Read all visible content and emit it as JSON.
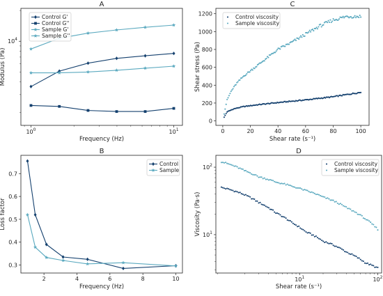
{
  "colors": {
    "dark": "#14406e",
    "light": "#5aa9bf"
  },
  "chart_data": [
    {
      "id": "A",
      "type": "line",
      "title": "A",
      "xlabel": "Frequency (Hz)",
      "ylabel": "Modulus (Pa)",
      "xscale": "log",
      "yscale": "log",
      "xlim": [
        0.85,
        11.5
      ],
      "ylim": [
        1500,
        21000
      ],
      "xticks": [
        {
          "value": 1,
          "label": "10",
          "sup": "0"
        },
        {
          "value": 10,
          "label": "10",
          "sup": "1"
        }
      ],
      "yticks": [
        {
          "value": 10000,
          "label": "10",
          "sup": "4"
        }
      ],
      "legend": "top-left",
      "series": [
        {
          "name": "Control G'",
          "color": "#14406e",
          "marker": "diamond",
          "x": [
            1,
            1.58,
            2.51,
            3.98,
            6.31,
            10
          ],
          "y": [
            3600,
            5100,
            6100,
            6800,
            7200,
            7600
          ]
        },
        {
          "name": "Control G''",
          "color": "#14406e",
          "marker": "square",
          "x": [
            1,
            1.58,
            2.51,
            3.98,
            6.31,
            10
          ],
          "y": [
            2350,
            2300,
            2100,
            2050,
            2050,
            2200
          ]
        },
        {
          "name": "Sample G'",
          "color": "#5aa9bf",
          "marker": "star",
          "x": [
            1,
            1.58,
            2.51,
            3.98,
            6.31,
            10
          ],
          "y": [
            4900,
            4900,
            5000,
            5200,
            5450,
            5700
          ]
        },
        {
          "name": "Sample G''",
          "color": "#5aa9bf",
          "marker": "star",
          "x": [
            1,
            1.58,
            2.51,
            3.98,
            6.31,
            10
          ],
          "y": [
            8400,
            10700,
            12000,
            12900,
            13700,
            14400
          ]
        }
      ]
    },
    {
      "id": "B",
      "type": "line",
      "title": "B",
      "xlabel": "Frequency (Hz)",
      "ylabel": "Loss factor",
      "xlim": [
        0.6,
        10.4
      ],
      "ylim": [
        0.265,
        0.78
      ],
      "xticks": [
        2,
        4,
        6,
        8,
        10
      ],
      "yticks": [
        0.3,
        0.4,
        0.5,
        0.6,
        0.7
      ],
      "legend": "top-right",
      "series": [
        {
          "name": "Control",
          "color": "#14406e",
          "marker": "diamond",
          "x": [
            1,
            1.47,
            2.15,
            3.16,
            4.64,
            6.81,
            10
          ],
          "y": [
            0.755,
            0.52,
            0.39,
            0.335,
            0.325,
            0.285,
            0.297
          ]
        },
        {
          "name": "Sample",
          "color": "#5aa9bf",
          "marker": "star",
          "x": [
            1,
            1.47,
            2.15,
            3.16,
            4.64,
            6.81,
            10
          ],
          "y": [
            0.52,
            0.378,
            0.333,
            0.32,
            0.305,
            0.31,
            0.296
          ]
        }
      ]
    },
    {
      "id": "C",
      "type": "scatter",
      "title": "C",
      "xlabel": "Shear rate (s⁻¹)",
      "ylabel": "Shear stress (Pa)",
      "xlim": [
        -5,
        106
      ],
      "ylim": [
        -50,
        1260
      ],
      "xticks": [
        0,
        20,
        40,
        60,
        80,
        100
      ],
      "yticks": [
        0,
        200,
        400,
        600,
        800,
        1000,
        1200
      ],
      "legend": "top-left",
      "series": [
        {
          "name": "Control viscosity",
          "color": "#14406e",
          "marker": "dot",
          "curve": [
            [
              1,
              40
            ],
            [
              3,
              100
            ],
            [
              8,
              135
            ],
            [
              15,
              160
            ],
            [
              25,
              180
            ],
            [
              40,
              205
            ],
            [
              60,
              235
            ],
            [
              80,
              270
            ],
            [
              100,
              320
            ]
          ]
        },
        {
          "name": "Sample viscosity",
          "color": "#5aa9bf",
          "marker": "dot",
          "curve": [
            [
              1,
              80
            ],
            [
              3,
              230
            ],
            [
              6,
              330
            ],
            [
              10,
              420
            ],
            [
              15,
              500
            ],
            [
              20,
              560
            ],
            [
              30,
              680
            ],
            [
              40,
              800
            ],
            [
              50,
              880
            ],
            [
              60,
              970
            ],
            [
              70,
              1060
            ],
            [
              80,
              1130
            ],
            [
              90,
              1170
            ],
            [
              100,
              1170
            ]
          ]
        }
      ]
    },
    {
      "id": "D",
      "type": "scatter",
      "title": "D",
      "xlabel": "Shear rate (s⁻¹)",
      "ylabel": "Viscosity (Pa·s)",
      "xscale": "log",
      "yscale": "log",
      "xlim": [
        0.85,
        112
      ],
      "ylim": [
        2.7,
        150
      ],
      "xticks": [
        {
          "value": 10,
          "label": "10",
          "sup": "1"
        },
        {
          "value": 100,
          "label": "10",
          "sup": "2"
        }
      ],
      "yticks": [
        {
          "value": 10,
          "label": "10",
          "sup": "1"
        },
        {
          "value": 100,
          "label": "10",
          "sup": "2"
        }
      ],
      "legend": "top-right",
      "series": [
        {
          "name": "Control viscosity",
          "color": "#14406e",
          "marker": "dot",
          "curve": [
            [
              1,
              50
            ],
            [
              3,
              30
            ],
            [
              5,
              21
            ],
            [
              8,
              15
            ],
            [
              12,
              11
            ],
            [
              20,
              8
            ],
            [
              40,
              5.5
            ],
            [
              70,
              3.8
            ],
            [
              100,
              3.2
            ]
          ]
        },
        {
          "name": "Sample viscosity",
          "color": "#5aa9bf",
          "marker": "dot",
          "curve": [
            [
              1,
              120
            ],
            [
              2,
              88
            ],
            [
              3,
              72
            ],
            [
              5,
              60
            ],
            [
              8,
              52
            ],
            [
              12,
              45
            ],
            [
              20,
              36
            ],
            [
              40,
              25
            ],
            [
              70,
              17
            ],
            [
              100,
              12
            ]
          ]
        }
      ]
    }
  ]
}
